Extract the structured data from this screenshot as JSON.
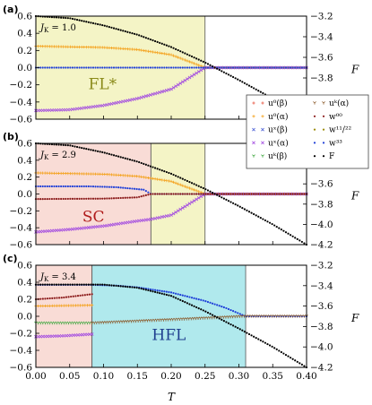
{
  "chart_data": {
    "type": "scatter",
    "xlabel": "T",
    "ylabel_right": "F",
    "x_ticks": [
      "0.00",
      "0.05",
      "0.10",
      "0.15",
      "0.20",
      "0.25",
      "0.30",
      "0.35",
      "0.40"
    ],
    "y_ticks_left": [
      "−0.6",
      "−0.4",
      "−0.2",
      "0.0",
      "0.2",
      "0.4",
      "0.6"
    ],
    "xlim": [
      0.0,
      0.4
    ],
    "ylim_left": [
      -0.6,
      0.6
    ],
    "legend_position": "right",
    "legend": [
      {
        "label": "u⁰(β)",
        "color": "#e8533f",
        "marker": "plus"
      },
      {
        "label": "u⁰(α)",
        "color": "#f4a21e",
        "marker": "plus"
      },
      {
        "label": "uˣ(β)",
        "color": "#4a5fd6",
        "marker": "x"
      },
      {
        "label": "uˣ(α)",
        "color": "#a24ae0",
        "marker": "x"
      },
      {
        "label": "uᵏ(β)",
        "color": "#40a840",
        "marker": "tri"
      },
      {
        "label": "uᵏ(α)",
        "color": "#8b5a2b",
        "marker": "tri"
      },
      {
        "label": "w⁰⁰",
        "color": "#8b1a1a",
        "marker": "dot"
      },
      {
        "label": "w¹¹/²²",
        "color": "#9a8a00",
        "marker": "dot"
      },
      {
        "label": "w³³",
        "color": "#1f3fd8",
        "marker": "dot"
      },
      {
        "label": "F",
        "color": "#000000",
        "marker": "dot"
      }
    ],
    "panels": [
      {
        "tag": "(a)",
        "jk_label": "J_K = 1.0",
        "y_ticks_right": [
          "−3.2",
          "−3.4",
          "−3.6",
          "−3.8"
        ],
        "ylim_right": [
          -3.2,
          -4.2
        ],
        "regions": [
          {
            "label": "FL*",
            "x": [
              0.0,
              0.25
            ],
            "color": "#f4f4c6",
            "text_color": "#8a8a1a"
          }
        ],
        "series": [
          {
            "name": "u⁰(α)",
            "points": [
              [
                0.0,
                0.25
              ],
              [
                0.1,
                0.235
              ],
              [
                0.15,
                0.21
              ],
              [
                0.2,
                0.15
              ],
              [
                0.25,
                0.0
              ],
              [
                0.4,
                0.0
              ]
            ]
          },
          {
            "name": "uˣ(α)",
            "points": [
              [
                0.0,
                -0.5
              ],
              [
                0.05,
                -0.49
              ],
              [
                0.1,
                -0.44
              ],
              [
                0.15,
                -0.36
              ],
              [
                0.2,
                -0.25
              ],
              [
                0.25,
                0.0
              ],
              [
                0.4,
                0.0
              ]
            ]
          },
          {
            "name": "w³³",
            "points": [
              [
                0.0,
                0.0
              ],
              [
                0.4,
                0.0
              ]
            ]
          },
          {
            "name": "F",
            "points": [
              [
                0.0,
                -3.2
              ],
              [
                0.05,
                -3.22
              ],
              [
                0.1,
                -3.29
              ],
              [
                0.15,
                -3.38
              ],
              [
                0.2,
                -3.5
              ],
              [
                0.25,
                -3.65
              ],
              [
                0.3,
                -3.82
              ],
              [
                0.35,
                -4.0
              ],
              [
                0.4,
                -4.2
              ]
            ]
          }
        ]
      },
      {
        "tag": "(b)",
        "jk_label": "J_K = 2.9",
        "y_ticks_right": [
          "−3.6",
          "−3.8",
          "−4.0",
          "−4.2"
        ],
        "ylim_right": [
          -3.2,
          -4.2
        ],
        "regions": [
          {
            "label": "SC",
            "x": [
              0.0,
              0.17
            ],
            "color": "#f9dcd6",
            "text_color": "#b01c1c"
          },
          {
            "label": "",
            "x": [
              0.17,
              0.25
            ],
            "color": "#f4f4c6",
            "text_color": "#8a8a1a"
          }
        ],
        "series": [
          {
            "name": "u⁰(α)",
            "points": [
              [
                0.0,
                0.25
              ],
              [
                0.1,
                0.235
              ],
              [
                0.15,
                0.21
              ],
              [
                0.2,
                0.15
              ],
              [
                0.25,
                0.0
              ],
              [
                0.4,
                0.0
              ]
            ]
          },
          {
            "name": "uˣ(α)",
            "points": [
              [
                0.0,
                -0.45
              ],
              [
                0.05,
                -0.42
              ],
              [
                0.1,
                -0.38
              ],
              [
                0.15,
                -0.32
              ],
              [
                0.17,
                -0.3
              ],
              [
                0.2,
                -0.25
              ],
              [
                0.25,
                0.0
              ],
              [
                0.4,
                0.0
              ]
            ]
          },
          {
            "name": "w³³",
            "points": [
              [
                0.0,
                0.09
              ],
              [
                0.08,
                0.09
              ],
              [
                0.12,
                0.08
              ],
              [
                0.16,
                0.05
              ],
              [
                0.17,
                0.0
              ],
              [
                0.4,
                0.0
              ]
            ]
          },
          {
            "name": "w⁰⁰",
            "points": [
              [
                0.0,
                -0.06
              ],
              [
                0.1,
                -0.055
              ],
              [
                0.15,
                -0.04
              ],
              [
                0.17,
                0.0
              ],
              [
                0.4,
                0.0
              ]
            ]
          },
          {
            "name": "F",
            "points": [
              [
                0.0,
                -3.2
              ],
              [
                0.05,
                -3.22
              ],
              [
                0.1,
                -3.29
              ],
              [
                0.15,
                -3.38
              ],
              [
                0.2,
                -3.5
              ],
              [
                0.25,
                -3.65
              ],
              [
                0.3,
                -3.82
              ],
              [
                0.35,
                -4.0
              ],
              [
                0.4,
                -4.2
              ]
            ]
          }
        ]
      },
      {
        "tag": "(c)",
        "jk_label": "J_K = 3.4",
        "y_ticks_right": [
          "−3.2",
          "−3.4",
          "−3.6",
          "−3.8",
          "−4.0",
          "−4.2"
        ],
        "ylim_right": [
          -3.2,
          -4.2
        ],
        "regions": [
          {
            "label": "",
            "x": [
              0.0,
              0.083
            ],
            "color": "#f9dcd6",
            "text_color": "#b01c1c"
          },
          {
            "label": "HFL",
            "x": [
              0.083,
              0.31
            ],
            "color": "#b0e9ed",
            "text_color": "#1f3f8f"
          }
        ],
        "series": [
          {
            "name": "w³³",
            "points": [
              [
                0.0,
                0.37
              ],
              [
                0.083,
                0.37
              ],
              [
                0.12,
                0.36
              ],
              [
                0.15,
                0.34
              ],
              [
                0.2,
                0.28
              ],
              [
                0.25,
                0.18
              ],
              [
                0.28,
                0.1
              ],
              [
                0.31,
                0.0
              ],
              [
                0.4,
                0.0
              ]
            ]
          },
          {
            "name": "w⁰⁰",
            "points": [
              [
                0.0,
                0.2
              ],
              [
                0.04,
                0.22
              ],
              [
                0.083,
                0.26
              ]
            ]
          },
          {
            "name": "u⁰(α)",
            "points": [
              [
                0.0,
                0.12
              ],
              [
                0.083,
                0.13
              ]
            ]
          },
          {
            "name": "uᵏ(β)",
            "points": [
              [
                0.0,
                -0.08
              ],
              [
                0.083,
                -0.08
              ]
            ]
          },
          {
            "name": "uˣ(α)",
            "points": [
              [
                0.0,
                -0.24
              ],
              [
                0.04,
                -0.23
              ],
              [
                0.083,
                -0.21
              ]
            ]
          },
          {
            "name": "uᵏ(α)",
            "points": [
              [
                0.083,
                -0.08
              ],
              [
                0.2,
                -0.04
              ],
              [
                0.31,
                0.0
              ],
              [
                0.4,
                0.0
              ]
            ]
          },
          {
            "name": "F",
            "points": [
              [
                0.0,
                -3.39
              ],
              [
                0.05,
                -3.39
              ],
              [
                0.1,
                -3.39
              ],
              [
                0.15,
                -3.42
              ],
              [
                0.2,
                -3.5
              ],
              [
                0.25,
                -3.65
              ],
              [
                0.3,
                -3.82
              ],
              [
                0.35,
                -4.0
              ],
              [
                0.4,
                -4.2
              ]
            ]
          }
        ]
      }
    ]
  }
}
